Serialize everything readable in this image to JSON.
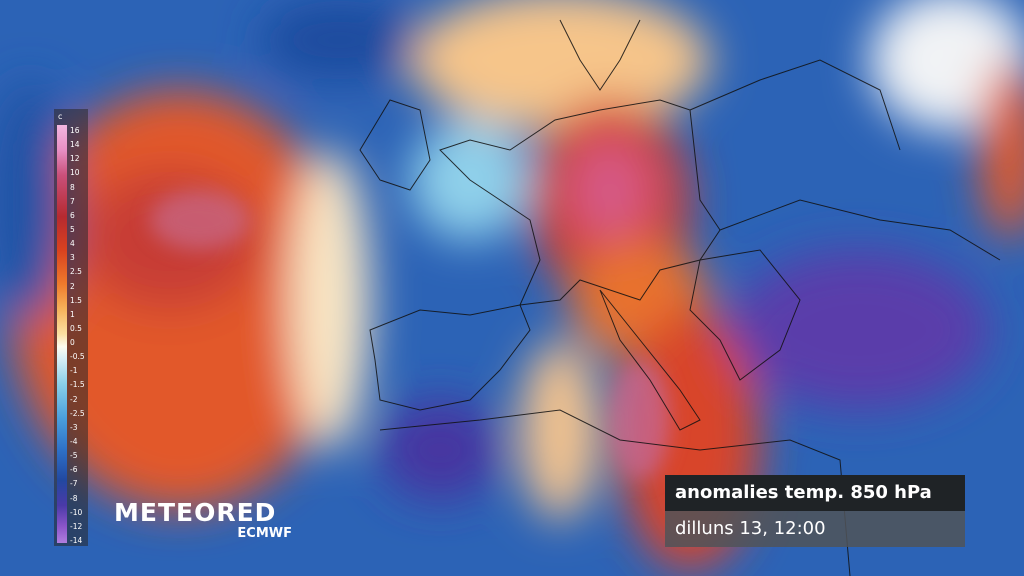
{
  "legend": {
    "unit": "c",
    "labels": [
      "16",
      "14",
      "12",
      "10",
      "8",
      "7",
      "6",
      "5",
      "4",
      "3",
      "2.5",
      "2",
      "1.5",
      "1",
      "0.5",
      "0",
      "-0.5",
      "-1",
      "-1.5",
      "-2",
      "-2.5",
      "-3",
      "-4",
      "-5",
      "-6",
      "-7",
      "-8",
      "-10",
      "-12",
      "-14"
    ]
  },
  "branding": {
    "name": "METEORED",
    "source": "ECMWF"
  },
  "info": {
    "title": "anomalies temp. 850 hPa",
    "date": "dilluns 13, 12:00"
  }
}
